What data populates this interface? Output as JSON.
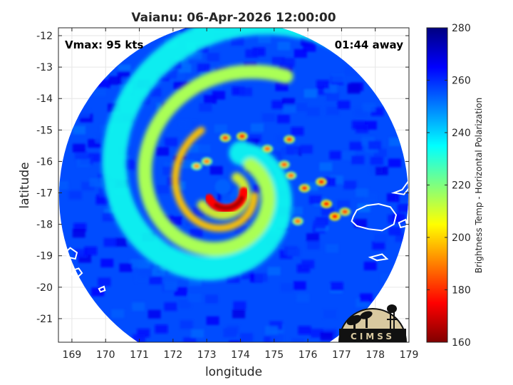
{
  "chart_data": {
    "type": "heatmap",
    "title": "Vaianu: 06-Apr-2026 12:00:00",
    "xlabel": "longitude",
    "ylabel": "latitude",
    "xlim": [
      168.6,
      179.0
    ],
    "ylim": [
      -21.75,
      -11.75
    ],
    "x_ticks": [
      169,
      170,
      171,
      172,
      173,
      174,
      175,
      176,
      177,
      178,
      179
    ],
    "y_ticks": [
      -12,
      -13,
      -14,
      -15,
      -16,
      -17,
      -18,
      -19,
      -20,
      -21
    ],
    "grid": true,
    "colorbar": {
      "label": "Brightness Temp - Horizontal Polarization",
      "range": [
        160,
        280
      ],
      "ticks": [
        160,
        180,
        200,
        220,
        240,
        260,
        280
      ],
      "colormap": "jet",
      "position": "right"
    },
    "annotations": {
      "vmax": "Vmax: 95 kts",
      "time_away": "01:44 away"
    },
    "swath_center": {
      "lon": 173.8,
      "lat": -17.1
    },
    "storm_center": {
      "lon": 173.6,
      "lat": -16.9
    },
    "field_values": {
      "background_min": 252,
      "background_max": 268,
      "spiral_band_min": 215,
      "inner_rainband_min": 198,
      "eyewall_min": 165
    },
    "deep_convection_cells": [
      {
        "lon": 173.55,
        "lat": -15.25,
        "tb": 185
      },
      {
        "lon": 174.05,
        "lat": -15.2,
        "tb": 182
      },
      {
        "lon": 174.8,
        "lat": -15.6,
        "tb": 190
      },
      {
        "lon": 175.45,
        "lat": -15.3,
        "tb": 185
      },
      {
        "lon": 175.3,
        "lat": -16.1,
        "tb": 188
      },
      {
        "lon": 175.5,
        "lat": -16.45,
        "tb": 190
      },
      {
        "lon": 175.9,
        "lat": -16.85,
        "tb": 182
      },
      {
        "lon": 176.4,
        "lat": -16.65,
        "tb": 180
      },
      {
        "lon": 176.55,
        "lat": -17.35,
        "tb": 178
      },
      {
        "lon": 176.8,
        "lat": -17.75,
        "tb": 175
      },
      {
        "lon": 177.1,
        "lat": -17.6,
        "tb": 185
      },
      {
        "lon": 175.7,
        "lat": -17.9,
        "tb": 190
      },
      {
        "lon": 173.0,
        "lat": -16.0,
        "tb": 192
      },
      {
        "lon": 172.7,
        "lat": -16.15,
        "tb": 195
      }
    ],
    "coastlines": [
      {
        "points": [
          [
            177.35,
            -17.75
          ],
          [
            177.45,
            -17.55
          ],
          [
            177.75,
            -17.4
          ],
          [
            178.1,
            -17.35
          ],
          [
            178.45,
            -17.45
          ],
          [
            178.62,
            -17.7
          ],
          [
            178.55,
            -18.0
          ],
          [
            178.2,
            -18.2
          ],
          [
            177.8,
            -18.15
          ],
          [
            177.45,
            -18.05
          ],
          [
            177.3,
            -17.9
          ]
        ]
      },
      {
        "points": [
          [
            178.8,
            -16.9
          ],
          [
            179.0,
            -16.6
          ],
          [
            179.0,
            -16.85
          ],
          [
            178.85,
            -17.05
          ],
          [
            178.55,
            -17.0
          ]
        ]
      },
      {
        "points": [
          [
            168.8,
            -18.9
          ],
          [
            168.95,
            -18.75
          ],
          [
            169.15,
            -18.9
          ],
          [
            169.1,
            -19.1
          ],
          [
            168.9,
            -19.05
          ]
        ]
      },
      {
        "points": [
          [
            169.05,
            -19.45
          ],
          [
            169.2,
            -19.4
          ],
          [
            169.3,
            -19.55
          ],
          [
            169.15,
            -19.7
          ],
          [
            169.0,
            -19.6
          ]
        ]
      },
      {
        "points": [
          [
            177.85,
            -19.05
          ],
          [
            178.2,
            -18.95
          ],
          [
            178.35,
            -19.1
          ],
          [
            178.05,
            -19.15
          ]
        ]
      },
      {
        "points": [
          [
            178.7,
            -17.95
          ],
          [
            178.9,
            -17.85
          ],
          [
            178.95,
            -18.05
          ],
          [
            178.75,
            -18.1
          ]
        ]
      },
      {
        "points": [
          [
            169.8,
            -20.05
          ],
          [
            169.95,
            -19.98
          ],
          [
            169.98,
            -20.1
          ],
          [
            169.85,
            -20.15
          ]
        ]
      }
    ]
  },
  "logo": {
    "text": "CIMSS"
  }
}
